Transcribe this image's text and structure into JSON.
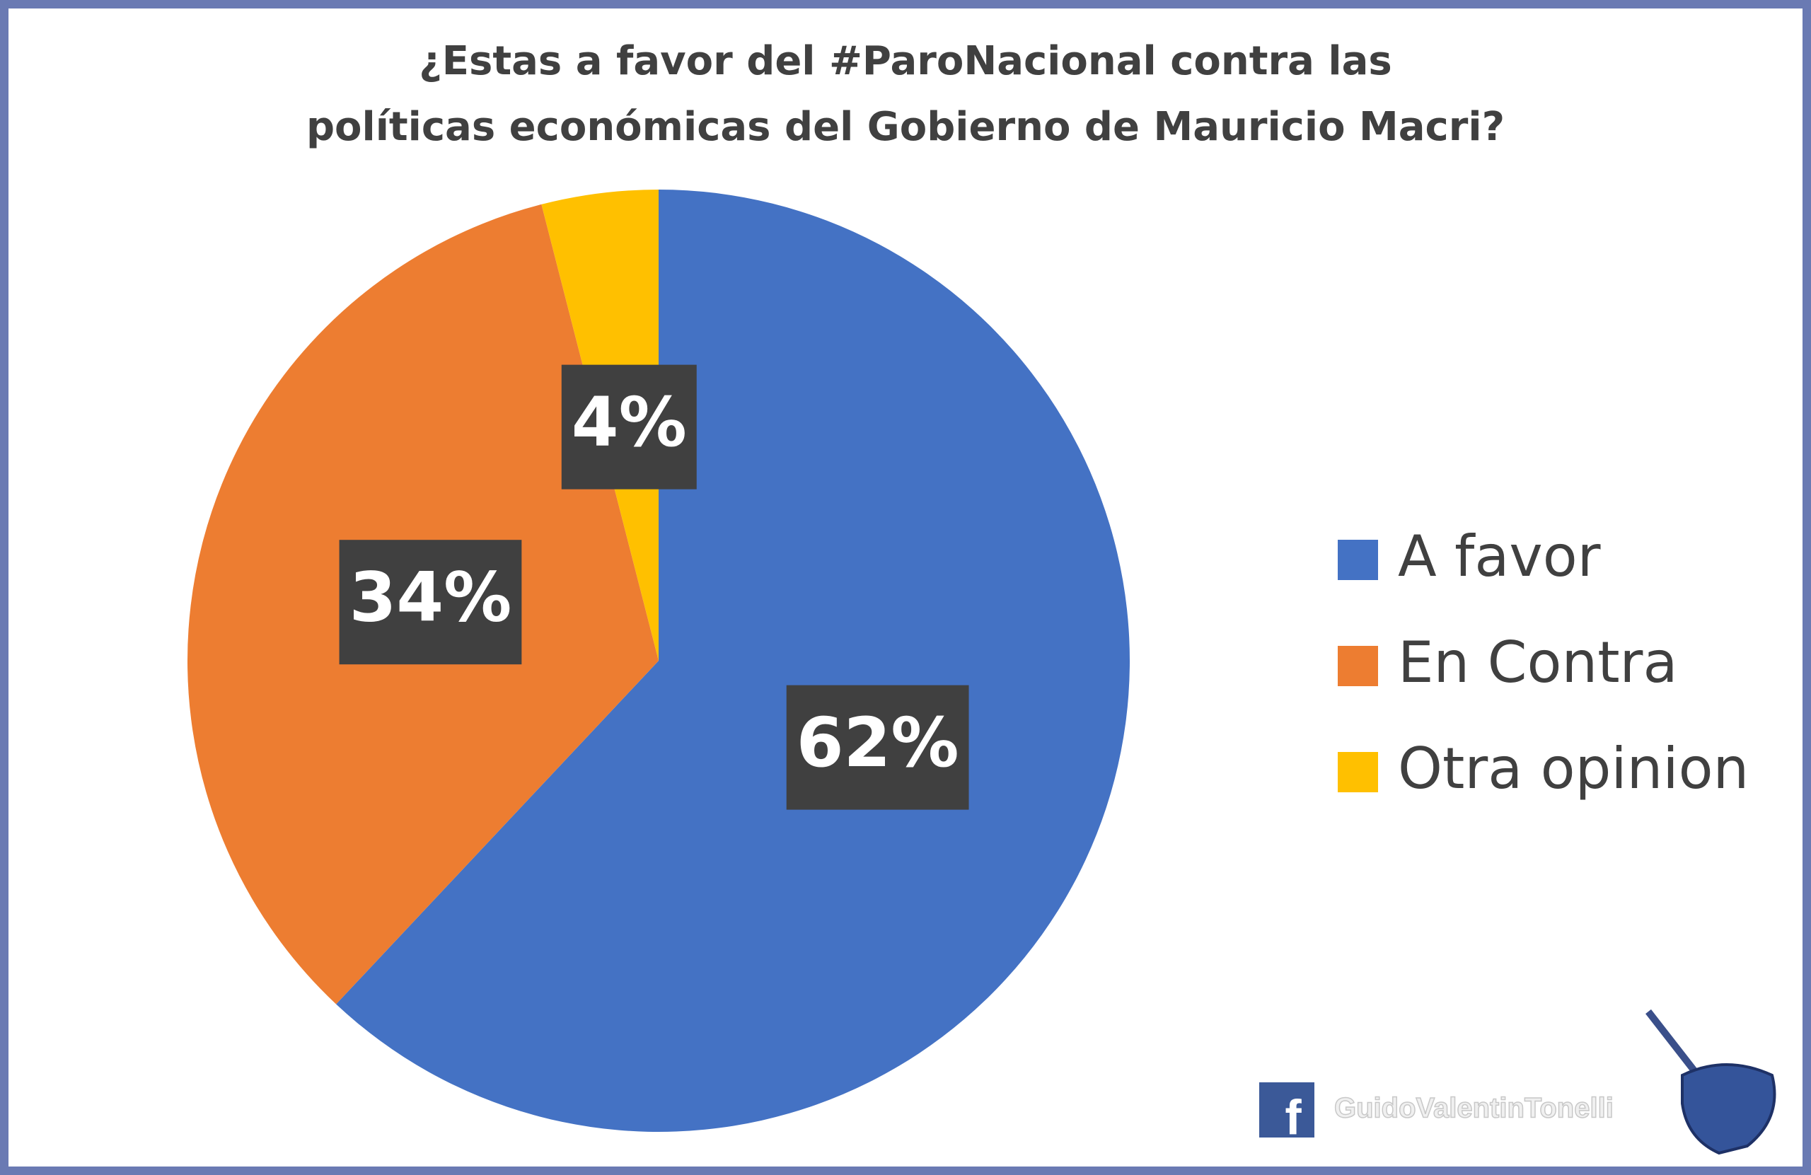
{
  "chart_data": {
    "type": "pie",
    "title": "¿Estas a favor del #ParoNacional contra las",
    "subtitle": "políticas económicas del Gobierno de Mauricio Macri?",
    "categories": [
      "A favor",
      "En Contra",
      "Otra opinion"
    ],
    "values": [
      62,
      34,
      4
    ],
    "value_labels": [
      "62%",
      "34%",
      "4%"
    ],
    "colors": [
      "#4472c4",
      "#ed7d31",
      "#ffc000"
    ],
    "legend": "right"
  },
  "watermark": "GuidoValentinTonelli"
}
